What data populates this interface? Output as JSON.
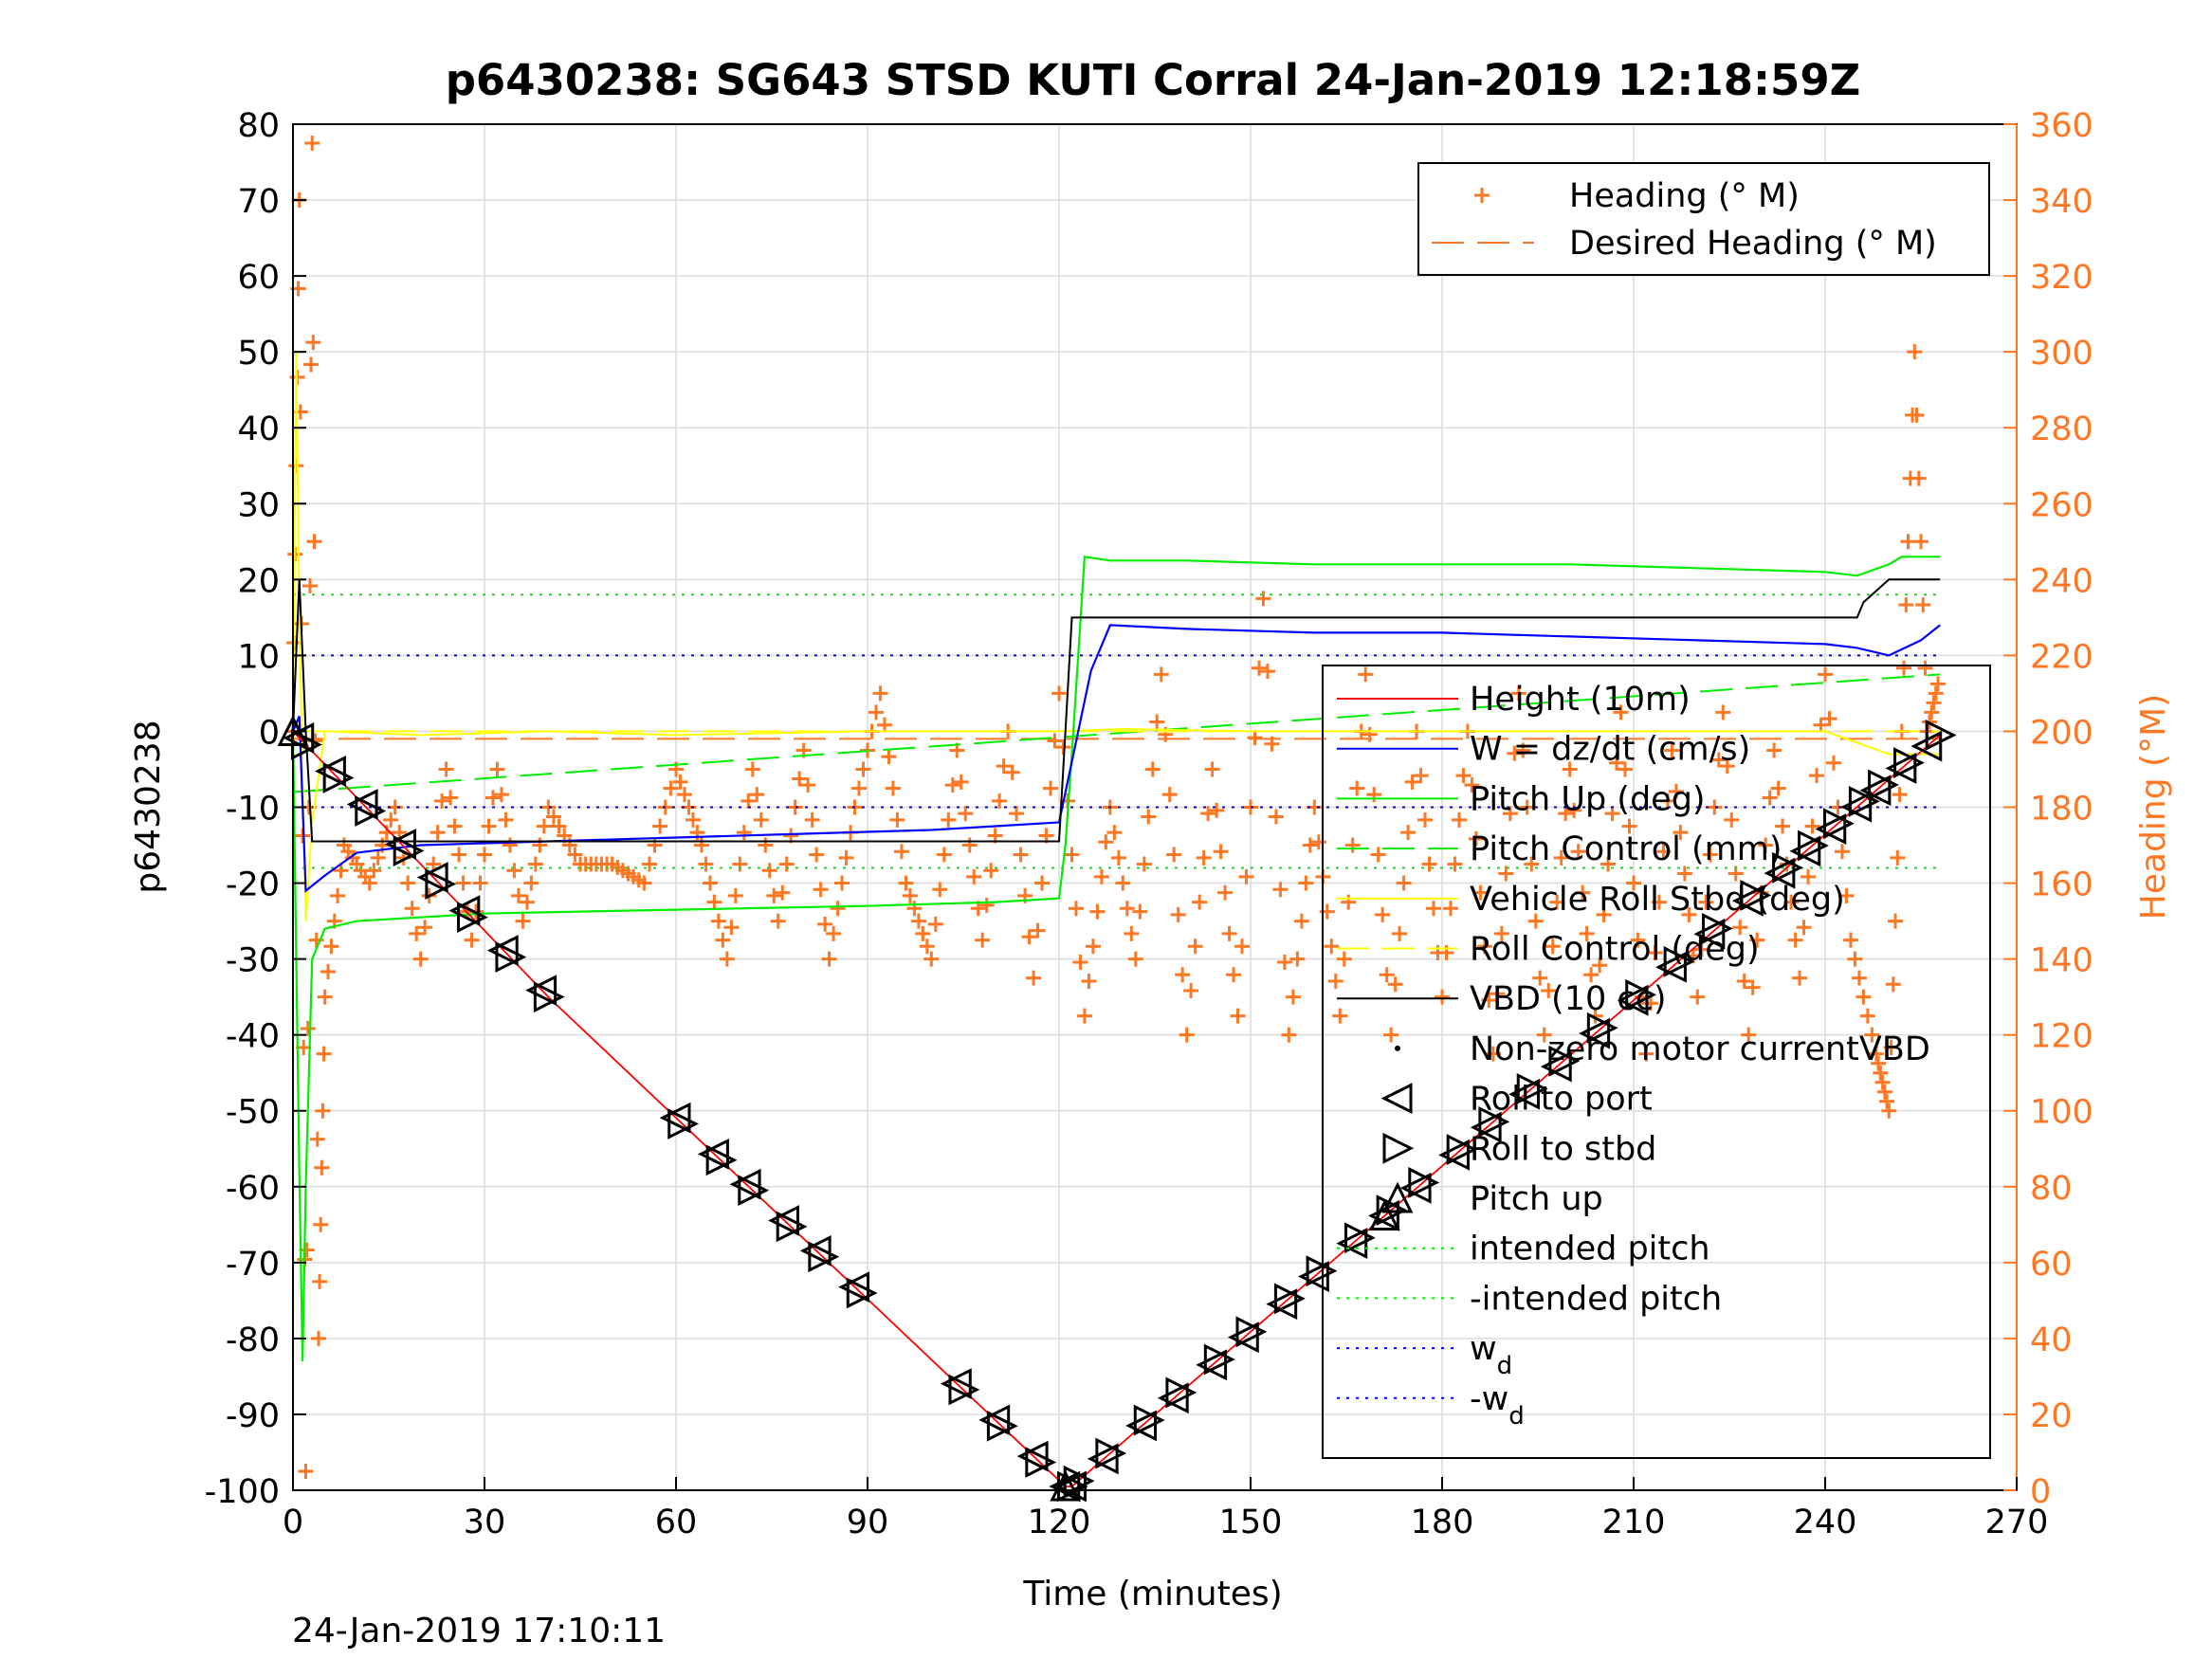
{
  "chart_data": {
    "type": "line",
    "title": "p6430238: SG643 STSD KUTI Corral 24-Jan-2019 12:18:59Z",
    "xlabel": "Time (minutes)",
    "ylabel_left": "p6430238",
    "ylabel_right": "Heading (°M)",
    "timestamp": "24-Jan-2019 17:10:11",
    "xlim": [
      0,
      270
    ],
    "ylim_left": [
      -100,
      80
    ],
    "ylim_right": [
      0,
      360
    ],
    "xticks": [
      "0",
      "30",
      "60",
      "90",
      "120",
      "150",
      "180",
      "210",
      "240",
      "270"
    ],
    "yticks_left": [
      "80",
      "70",
      "60",
      "50",
      "40",
      "30",
      "20",
      "10",
      "0",
      "-10",
      "-20",
      "-30",
      "-40",
      "-50",
      "-60",
      "-70",
      "-80",
      "-90",
      "-100"
    ],
    "yticks_right": [
      "360",
      "340",
      "320",
      "300",
      "280",
      "260",
      "240",
      "220",
      "200",
      "180",
      "160",
      "140",
      "120",
      "100",
      "80",
      "60",
      "40",
      "20",
      "0"
    ],
    "grid": true,
    "colors": {
      "height": "#ff0000",
      "w": "#0000ff",
      "pitch": "#00ee00",
      "roll": "#ffff00",
      "vbd": "#000000",
      "heading": "#ff7722"
    },
    "legend_top": {
      "placement": "top-right",
      "entries": [
        "Heading (° M)",
        "Desired Heading (° M)"
      ]
    },
    "legend_main": {
      "placement": "right",
      "entries": [
        {
          "label": "Height (10m)"
        },
        {
          "label": "W = dz/dt (cm/s)"
        },
        {
          "label": "Pitch Up (deg)"
        },
        {
          "label": "Pitch Control (mm)"
        },
        {
          "label": "Vehicle Roll Stbd (deg)"
        },
        {
          "label": "Roll Control (deg)"
        },
        {
          "label": "VBD (10 cc)"
        },
        {
          "label": "Non-zero motor currentVBD"
        },
        {
          "label": "Roll to port"
        },
        {
          "label": "Roll to stbd"
        },
        {
          "label": "Pitch up"
        },
        {
          "label": "intended pitch"
        },
        {
          "label": "-intended pitch"
        },
        {
          "label": "w",
          "sub": "d"
        },
        {
          "label": "-w",
          "sub": "d"
        }
      ]
    },
    "series": [
      {
        "name": "Height (10m)",
        "x": [
          0,
          40,
          121,
          122,
          258
        ],
        "y": [
          0,
          -35,
          -99.5,
          -99.5,
          -0.5
        ]
      },
      {
        "name": "W = dz/dt (cm/s)",
        "x": [
          0,
          1,
          2,
          5,
          10,
          20,
          40,
          60,
          80,
          100,
          110,
          120,
          122,
          125,
          128,
          140,
          160,
          180,
          200,
          220,
          240,
          245,
          250,
          255,
          258
        ],
        "y": [
          0,
          2,
          -21,
          -19,
          -16,
          -15,
          -14.5,
          -14,
          -13.5,
          -13,
          -12.5,
          -12,
          -4,
          8,
          14,
          13.5,
          13,
          13,
          12.5,
          12,
          11.5,
          11,
          10,
          12,
          14
        ]
      },
      {
        "name": "Pitch Up (deg)",
        "x": [
          0,
          1,
          1.5,
          2,
          3,
          5,
          10,
          30,
          60,
          90,
          110,
          120,
          121,
          122,
          124,
          128,
          140,
          160,
          180,
          200,
          220,
          240,
          245,
          250,
          252,
          258
        ],
        "y": [
          0,
          -58,
          -83,
          -60,
          -30,
          -26,
          -25,
          -24,
          -23.5,
          -23,
          -22.5,
          -22,
          -15,
          -3,
          23,
          22.5,
          22.5,
          22,
          22,
          22,
          21.5,
          21,
          20.5,
          22,
          23,
          23
        ]
      },
      {
        "name": "Pitch Control (mm)",
        "x": [
          0,
          258
        ],
        "y": [
          -8,
          7.5
        ]
      },
      {
        "name": "Vehicle Roll Stbd (deg)",
        "x": [
          0,
          0.5,
          1,
          1.5,
          2,
          3,
          5,
          20,
          40,
          60,
          90,
          110,
          120,
          130,
          150,
          180,
          210,
          240,
          250,
          258
        ],
        "y": [
          0,
          50,
          15,
          -5,
          -25,
          -12,
          0,
          -0.5,
          0,
          -0.5,
          0,
          0,
          0,
          0.3,
          0,
          0,
          0,
          0,
          -3,
          -3
        ]
      },
      {
        "name": "Roll Control (deg)",
        "x": [
          0,
          258
        ],
        "y": [
          0,
          0
        ]
      },
      {
        "name": "VBD (10 cc)",
        "x": [
          0,
          1,
          2,
          3,
          120,
          121,
          122,
          245,
          246,
          250,
          258
        ],
        "y": [
          0,
          20,
          0,
          -14.5,
          -14.5,
          0,
          15,
          15,
          17,
          20,
          20
        ]
      },
      {
        "name": "intended pitch",
        "x": [
          0,
          258
        ],
        "y": [
          18,
          18
        ]
      },
      {
        "name": "-intended pitch",
        "x": [
          0,
          258
        ],
        "y": [
          -18,
          -18
        ]
      },
      {
        "name": "w_d",
        "x": [
          0,
          258
        ],
        "y": [
          10,
          10
        ]
      },
      {
        "name": "-w_d",
        "x": [
          0,
          258
        ],
        "y": [
          -10,
          -10
        ]
      },
      {
        "name": "Desired Heading (° M)",
        "x": [
          0,
          258
        ],
        "y": [
          198,
          198
        ]
      },
      {
        "name": "Heading (° M)",
        "axis": "right",
        "x": [
          0,
          1,
          2,
          3,
          4,
          5,
          8,
          12,
          16,
          20,
          24,
          28,
          32,
          36,
          40,
          45,
          50,
          55,
          60,
          64,
          68,
          72,
          76,
          80,
          84,
          88,
          92,
          96,
          100,
          104,
          108,
          112,
          116,
          120,
          124,
          128,
          132,
          136,
          140,
          144,
          148,
          152,
          156,
          160,
          164,
          168,
          172,
          176,
          180,
          184,
          188,
          192,
          196,
          200,
          204,
          208,
          212,
          216,
          220,
          224,
          228,
          232,
          236,
          240,
          244,
          248,
          250,
          252,
          254,
          256,
          258
        ],
        "y": [
          200,
          340,
          5,
          355,
          40,
          130,
          170,
          160,
          180,
          140,
          190,
          145,
          190,
          150,
          180,
          165,
          165,
          160,
          190,
          170,
          140,
          190,
          150,
          195,
          140,
          180,
          210,
          160,
          140,
          195,
          145,
          200,
          135,
          210,
          125,
          180,
          140,
          215,
          120,
          190,
          125,
          235,
          120,
          180,
          125,
          215,
          120,
          200,
          130,
          200,
          115,
          210,
          120,
          190,
          125,
          205,
          115,
          195,
          130,
          205,
          120,
          195,
          135,
          215,
          145,
          115,
          100,
          200,
          300,
          200,
          215
        ]
      }
    ],
    "markers": {
      "roll_to_port_x": [
        1,
        6,
        11,
        17,
        22,
        27,
        33,
        39,
        60,
        66,
        71,
        77,
        82,
        88,
        104,
        110,
        116,
        121,
        122,
        127,
        133,
        138,
        144,
        149,
        155,
        160,
        166,
        171,
        176,
        182,
        187,
        193,
        198,
        204,
        210,
        216,
        222,
        228,
        233,
        237,
        241,
        245,
        248,
        252,
        256
      ],
      "roll_to_stbd_x": [
        2,
        7,
        12,
        18,
        23,
        28,
        34,
        40,
        61,
        67,
        72,
        78,
        83,
        89,
        105,
        111,
        117,
        122,
        123,
        128,
        134,
        139,
        145,
        150,
        156,
        161,
        167,
        172,
        177,
        183,
        188,
        194,
        199,
        205,
        211,
        217,
        223,
        229,
        234,
        238,
        242,
        246,
        249,
        253,
        258
      ],
      "pitch_up_x": [
        0,
        121,
        171
      ]
    }
  }
}
